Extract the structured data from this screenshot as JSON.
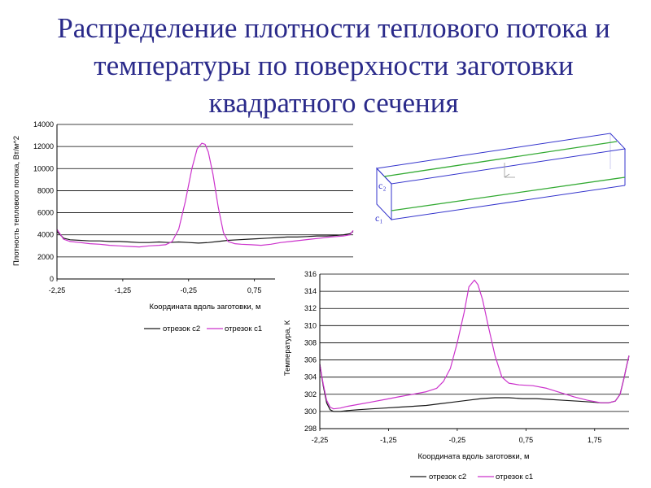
{
  "slide": {
    "title_lines": [
      "Распределение плотности теплового потока и",
      "температуры по поверхности заготовки",
      "квадратного сечения"
    ]
  },
  "colors": {
    "title": "#2a2a8a",
    "series_c2": "#1a1a1a",
    "series_c1": "#cc33cc",
    "box_edges": "#3333cc",
    "box_lines": "#33aa33"
  },
  "diagram": {
    "label_c1": "c₁",
    "label_c2": "c₂"
  },
  "chart_data": [
    {
      "type": "line",
      "title": "",
      "xlabel": "Координата вдоль заготовки, м",
      "ylabel": "Плотность теплового потока, Вт/м^2",
      "xlim": [
        -2.25,
        2.25
      ],
      "ylim": [
        0,
        14000
      ],
      "x_ticks": [
        -2.25,
        -1.25,
        -0.25,
        0.75
      ],
      "x_tick_labels": [
        "-2,25",
        "-1,25",
        "-0,25",
        "0,75"
      ],
      "y_ticks": [
        0,
        2000,
        4000,
        6000,
        8000,
        10000,
        12000,
        14000
      ],
      "y_tick_labels": [
        "0",
        "2000",
        "4000",
        "6000",
        "8000",
        "10000",
        "12000",
        "14000"
      ],
      "grid": "horizontal",
      "legend": "bottom",
      "series": [
        {
          "name": "отрезок с2",
          "color": "#1a1a1a",
          "x": [
            -2.25,
            -2.15,
            -2.05,
            -1.9,
            -1.75,
            -1.6,
            -1.45,
            -1.3,
            -1.15,
            -1.0,
            -0.85,
            -0.7,
            -0.55,
            -0.4,
            -0.25,
            -0.1,
            0.05,
            0.2,
            0.35,
            0.5,
            0.65,
            0.8,
            0.95,
            1.1,
            1.25,
            1.4,
            1.55,
            1.7,
            1.85,
            2.0,
            2.1,
            2.2,
            2.25
          ],
          "y": [
            4300,
            3700,
            3550,
            3500,
            3450,
            3450,
            3400,
            3400,
            3350,
            3300,
            3300,
            3350,
            3300,
            3350,
            3300,
            3250,
            3300,
            3400,
            3500,
            3550,
            3600,
            3650,
            3700,
            3750,
            3800,
            3800,
            3850,
            3900,
            3900,
            3950,
            4000,
            4100,
            4300
          ]
        },
        {
          "name": "отрезок с1",
          "color": "#cc33cc",
          "x": [
            -2.25,
            -2.15,
            -2.05,
            -1.9,
            -1.75,
            -1.6,
            -1.45,
            -1.3,
            -1.15,
            -1.0,
            -0.85,
            -0.7,
            -0.6,
            -0.5,
            -0.4,
            -0.3,
            -0.2,
            -0.12,
            -0.05,
            0.0,
            0.05,
            0.12,
            0.2,
            0.28,
            0.35,
            0.45,
            0.55,
            0.7,
            0.85,
            1.0,
            1.15,
            1.3,
            1.45,
            1.6,
            1.75,
            1.9,
            2.0,
            2.1,
            2.2,
            2.25
          ],
          "y": [
            4500,
            3600,
            3400,
            3300,
            3200,
            3150,
            3050,
            3000,
            2950,
            2900,
            3000,
            3050,
            3100,
            3400,
            4500,
            7000,
            10000,
            11800,
            12300,
            12200,
            11500,
            9500,
            6500,
            4200,
            3400,
            3200,
            3150,
            3100,
            3050,
            3150,
            3300,
            3400,
            3500,
            3600,
            3700,
            3800,
            3850,
            3900,
            4000,
            4400
          ]
        }
      ]
    },
    {
      "type": "line",
      "title": "",
      "xlabel": "Координата вдоль заготовки, м",
      "ylabel": "Температура, К",
      "xlim": [
        -2.25,
        2.25
      ],
      "ylim": [
        298,
        316
      ],
      "x_ticks": [
        -2.25,
        -1.25,
        -0.25,
        0.75,
        1.75
      ],
      "x_tick_labels": [
        "-2,25",
        "-1,25",
        "-0,25",
        "0,75",
        "1,75"
      ],
      "y_ticks": [
        298,
        300,
        302,
        304,
        306,
        308,
        310,
        312,
        314,
        316
      ],
      "y_tick_labels": [
        "298",
        "300",
        "302",
        "304",
        "306",
        "308",
        "310",
        "312",
        "314",
        "316"
      ],
      "grid": "horizontal",
      "legend": "bottom",
      "series": [
        {
          "name": "отрезок с2",
          "color": "#1a1a1a",
          "x": [
            -2.25,
            -2.2,
            -2.15,
            -2.1,
            -2.05,
            -1.95,
            -1.85,
            -1.7,
            -1.5,
            -1.3,
            -1.1,
            -0.9,
            -0.7,
            -0.5,
            -0.3,
            -0.1,
            0.1,
            0.3,
            0.5,
            0.7,
            0.9,
            1.1,
            1.3,
            1.5,
            1.7,
            1.85,
            1.95,
            2.05,
            2.12,
            2.18,
            2.22,
            2.25
          ],
          "y": [
            305.5,
            303.0,
            301.0,
            300.2,
            300.0,
            300.0,
            300.1,
            300.2,
            300.3,
            300.4,
            300.5,
            300.6,
            300.7,
            300.9,
            301.1,
            301.3,
            301.5,
            301.6,
            301.6,
            301.5,
            301.5,
            301.4,
            301.3,
            301.2,
            301.1,
            301.0,
            301.0,
            301.2,
            302.0,
            304.0,
            305.5,
            306.5
          ]
        },
        {
          "name": "отрезок с1",
          "color": "#cc33cc",
          "x": [
            -2.25,
            -2.2,
            -2.15,
            -2.1,
            -2.05,
            -1.95,
            -1.85,
            -1.7,
            -1.5,
            -1.3,
            -1.1,
            -0.9,
            -0.7,
            -0.55,
            -0.45,
            -0.35,
            -0.25,
            -0.15,
            -0.08,
            0.0,
            0.05,
            0.12,
            0.2,
            0.3,
            0.4,
            0.5,
            0.65,
            0.85,
            1.05,
            1.25,
            1.45,
            1.65,
            1.85,
            1.95,
            2.05,
            2.12,
            2.18,
            2.22,
            2.25
          ],
          "y": [
            305.5,
            303.2,
            301.3,
            300.5,
            300.3,
            300.4,
            300.6,
            300.8,
            301.1,
            301.4,
            301.7,
            302.0,
            302.3,
            302.7,
            303.5,
            305.0,
            308.0,
            311.5,
            314.5,
            315.3,
            314.8,
            313.0,
            310.0,
            306.5,
            304.0,
            303.3,
            303.1,
            303.0,
            302.7,
            302.2,
            301.7,
            301.3,
            301.0,
            301.0,
            301.2,
            302.0,
            304.0,
            305.5,
            306.5
          ]
        }
      ]
    }
  ]
}
